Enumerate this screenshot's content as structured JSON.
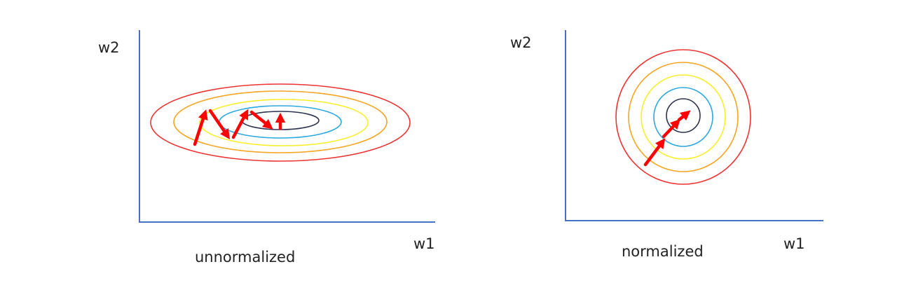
{
  "colors": {
    "axis": "#4472C4",
    "arrow": "#FF0000",
    "contour_outer": "#EE3333",
    "contour_2": "#F5A623",
    "contour_3": "#F8EF2A",
    "contour_4": "#2EA8E0",
    "contour_center": "#2F3352",
    "text": "#222222"
  },
  "panels": [
    {
      "id": "unnormalized",
      "caption": "unnormalized",
      "x_axis_label": "w1",
      "y_axis_label": "w2",
      "contour_shape": "elongated-ellipse",
      "contour_levels": 5,
      "path_style": "zig-zag"
    },
    {
      "id": "normalized",
      "caption": "normalized",
      "x_axis_label": "w1",
      "y_axis_label": "w2",
      "contour_shape": "circle",
      "contour_levels": 5,
      "path_style": "direct"
    }
  ]
}
